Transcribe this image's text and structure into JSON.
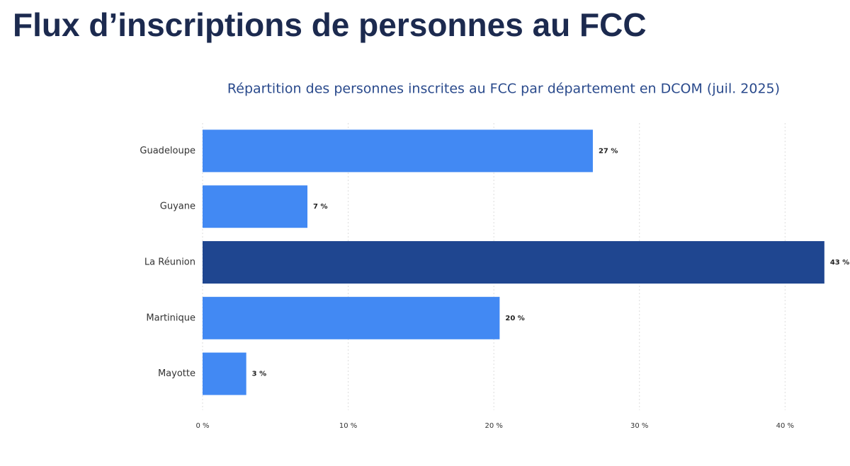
{
  "page_title": "Flux d’inscriptions de personnes au FCC",
  "chart_data": {
    "type": "hbar",
    "title": "Répartition des personnes inscrites au FCC par département en DCOM (juil. 2025)",
    "categories": [
      "Guadeloupe",
      "Guyane",
      "La Réunion",
      "Martinique",
      "Mayotte"
    ],
    "values": [
      26.8,
      7.2,
      42.7,
      20.4,
      3.0
    ],
    "value_labels": [
      "27 %",
      "7 %",
      "43 %",
      "20 %",
      "3 %"
    ],
    "colors": [
      "#4289f3",
      "#4289f3",
      "#1f4690",
      "#4289f3",
      "#4289f3"
    ],
    "xlim": [
      0,
      43
    ],
    "xticks": [
      {
        "value": 0,
        "label": "0 %"
      },
      {
        "value": 10,
        "label": "10 %"
      },
      {
        "value": 20,
        "label": "20 %"
      },
      {
        "value": 30,
        "label": "30 %"
      },
      {
        "value": 40,
        "label": "40 %"
      }
    ],
    "grid": true
  }
}
